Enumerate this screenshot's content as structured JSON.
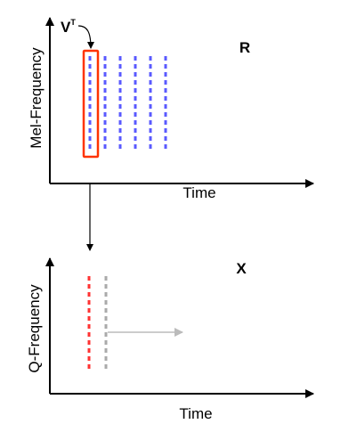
{
  "top_plot": {
    "y_axis_label": "Mel-Frequency",
    "x_axis_label": "Time",
    "matrix_label": "R",
    "column_count": 6,
    "column_color": "#5a5aff",
    "highlight_color": "#ff3300"
  },
  "vector_label": {
    "base": "V",
    "superscript": "T"
  },
  "bottom_plot": {
    "y_axis_label": "Q-Frequency",
    "x_axis_label": "Time",
    "matrix_label": "X",
    "column_colors": [
      "#ff3333",
      "#aaaaaa"
    ],
    "shift_arrow_color": "#bbbbbb"
  },
  "colors": {
    "axis": "#000000"
  }
}
